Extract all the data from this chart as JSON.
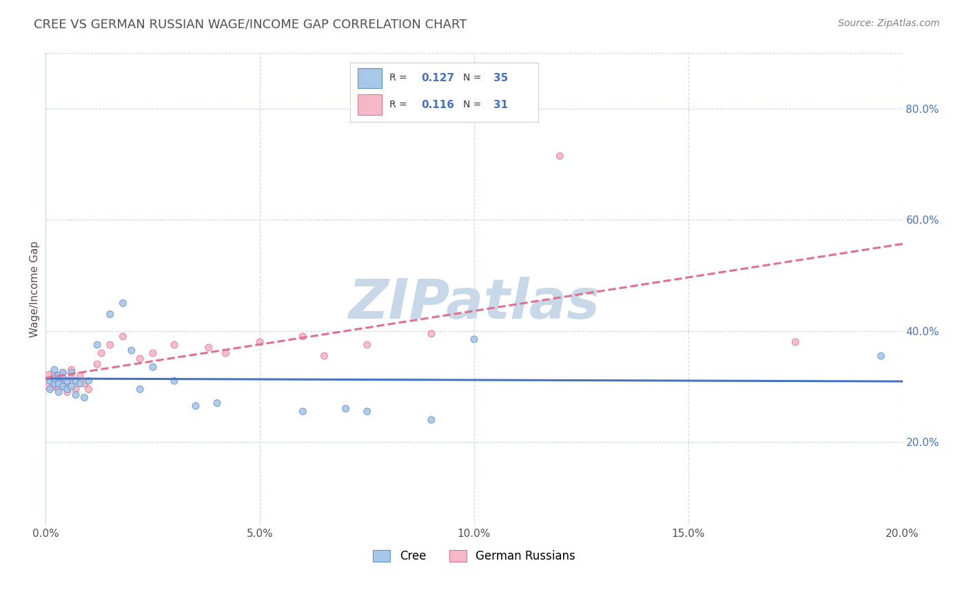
{
  "title": "CREE VS GERMAN RUSSIAN WAGE/INCOME GAP CORRELATION CHART",
  "source_text": "Source: ZipAtlas.com",
  "ylabel": "Wage/Income Gap",
  "xlim": [
    0.0,
    0.2
  ],
  "ylim": [
    0.05,
    0.9
  ],
  "xticks": [
    0.0,
    0.05,
    0.1,
    0.15,
    0.2
  ],
  "xticklabels": [
    "0.0%",
    "5.0%",
    "10.0%",
    "15.0%",
    "20.0%"
  ],
  "yticks_right": [
    0.2,
    0.4,
    0.6,
    0.8
  ],
  "yticklabels_right": [
    "20.0%",
    "40.0%",
    "60.0%",
    "80.0%"
  ],
  "cree_R": 0.127,
  "cree_N": 35,
  "german_R": 0.116,
  "german_N": 31,
  "cree_color": "#a8c8e8",
  "german_color": "#f4b8c8",
  "cree_edge_color": "#6090c8",
  "german_edge_color": "#e87090",
  "cree_line_color": "#4472c4",
  "german_line_color": "#e07090",
  "watermark": "ZIPatlas",
  "watermark_color": "#c8d8e8",
  "title_color": "#505050",
  "source_color": "#808080",
  "legend_label_cree": "Cree",
  "legend_label_german": "German Russians",
  "cree_x": [
    0.001,
    0.001,
    0.002,
    0.002,
    0.002,
    0.003,
    0.003,
    0.003,
    0.004,
    0.004,
    0.004,
    0.005,
    0.005,
    0.006,
    0.006,
    0.007,
    0.007,
    0.008,
    0.009,
    0.01,
    0.012,
    0.015,
    0.018,
    0.02,
    0.022,
    0.025,
    0.03,
    0.035,
    0.04,
    0.06,
    0.07,
    0.075,
    0.09,
    0.1,
    0.195
  ],
  "cree_y": [
    0.295,
    0.31,
    0.305,
    0.315,
    0.33,
    0.305,
    0.29,
    0.32,
    0.3,
    0.315,
    0.325,
    0.295,
    0.31,
    0.3,
    0.325,
    0.31,
    0.285,
    0.305,
    0.28,
    0.31,
    0.375,
    0.43,
    0.45,
    0.365,
    0.295,
    0.335,
    0.31,
    0.265,
    0.27,
    0.255,
    0.26,
    0.255,
    0.24,
    0.385,
    0.355
  ],
  "german_x": [
    0.001,
    0.002,
    0.002,
    0.003,
    0.003,
    0.004,
    0.004,
    0.005,
    0.005,
    0.006,
    0.006,
    0.007,
    0.008,
    0.009,
    0.01,
    0.012,
    0.013,
    0.015,
    0.018,
    0.022,
    0.025,
    0.03,
    0.038,
    0.042,
    0.05,
    0.06,
    0.065,
    0.075,
    0.09,
    0.12,
    0.175
  ],
  "german_y": [
    0.31,
    0.3,
    0.32,
    0.295,
    0.315,
    0.305,
    0.325,
    0.29,
    0.305,
    0.315,
    0.33,
    0.295,
    0.32,
    0.305,
    0.295,
    0.34,
    0.36,
    0.375,
    0.39,
    0.35,
    0.36,
    0.375,
    0.37,
    0.36,
    0.38,
    0.39,
    0.355,
    0.375,
    0.395,
    0.715,
    0.38
  ],
  "cree_sizes": [
    50,
    50,
    50,
    50,
    50,
    50,
    50,
    50,
    50,
    50,
    50,
    50,
    50,
    50,
    50,
    50,
    50,
    50,
    50,
    50,
    50,
    50,
    50,
    50,
    50,
    50,
    50,
    50,
    50,
    50,
    50,
    50,
    50,
    50,
    50
  ],
  "german_sizes": [
    400,
    50,
    50,
    50,
    50,
    50,
    50,
    50,
    50,
    50,
    50,
    50,
    50,
    50,
    50,
    50,
    50,
    50,
    50,
    50,
    50,
    50,
    50,
    50,
    50,
    50,
    50,
    50,
    50,
    50,
    50
  ],
  "bg_color": "#ffffff",
  "grid_color": "#c8d8e8",
  "grid_style": "--",
  "trendline_x_start": 0.0,
  "trendline_x_end": 0.2
}
